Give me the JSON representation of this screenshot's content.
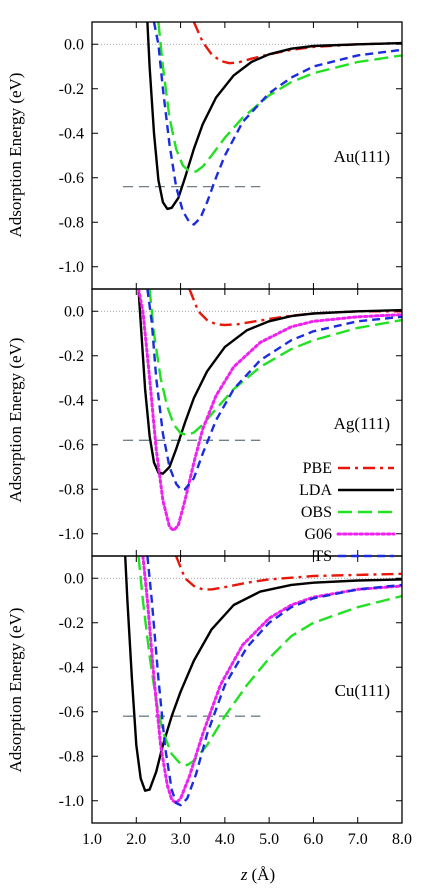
{
  "figure": {
    "ylabel": "Adsorption Energy (eV)",
    "xlabel_italic": "z",
    "xlabel_unit": "(Å)"
  },
  "colors": {
    "PBE": "#e8160b",
    "LDA": "#000000",
    "OBS": "#22e022",
    "G06": "#ee22ee",
    "TS": "#1a2cdd",
    "reference_line": "#6e7f88",
    "zero_line": "#888888"
  },
  "legend": {
    "position": "inside-middle-panel-right",
    "entries": [
      "PBE",
      "LDA",
      "OBS",
      "G06",
      "TS"
    ]
  },
  "chart_data": [
    {
      "type": "line",
      "panel_label": "Au(111)",
      "xlim": [
        1.0,
        8.0
      ],
      "ylim": [
        -1.1,
        0.1
      ],
      "xticks": [
        1.0,
        2.0,
        3.0,
        4.0,
        5.0,
        6.0,
        7.0,
        8.0
      ],
      "yticks": [
        0.0,
        -0.2,
        -0.4,
        -0.6,
        -0.8,
        -1.0
      ],
      "ytick_labels": [
        "0.0",
        "-0.2",
        "-0.4",
        "-0.6",
        "-0.8",
        "-1.0"
      ],
      "zero_line": true,
      "reference_line": {
        "y": -0.64,
        "x": [
          1.7,
          4.8
        ]
      },
      "series": [
        {
          "name": "PBE",
          "dash": "dashdot",
          "points": [
            [
              3.3,
              0.1
            ],
            [
              3.5,
              0.01
            ],
            [
              3.7,
              -0.045
            ],
            [
              3.9,
              -0.075
            ],
            [
              4.1,
              -0.085
            ],
            [
              4.3,
              -0.082
            ],
            [
              4.6,
              -0.065
            ],
            [
              5.0,
              -0.045
            ],
            [
              5.5,
              -0.025
            ],
            [
              6.0,
              -0.012
            ],
            [
              7.0,
              0.0
            ],
            [
              8.0,
              0.005
            ]
          ]
        },
        {
          "name": "LDA",
          "dash": "solid",
          "points": [
            [
              2.25,
              0.1
            ],
            [
              2.3,
              -0.1
            ],
            [
              2.4,
              -0.4
            ],
            [
              2.5,
              -0.61
            ],
            [
              2.6,
              -0.71
            ],
            [
              2.7,
              -0.74
            ],
            [
              2.8,
              -0.735
            ],
            [
              2.95,
              -0.69
            ],
            [
              3.1,
              -0.6
            ],
            [
              3.3,
              -0.47
            ],
            [
              3.5,
              -0.36
            ],
            [
              3.8,
              -0.24
            ],
            [
              4.2,
              -0.14
            ],
            [
              4.6,
              -0.08
            ],
            [
              5.0,
              -0.045
            ],
            [
              5.5,
              -0.02
            ],
            [
              6.0,
              -0.008
            ],
            [
              7.0,
              0.0
            ],
            [
              8.0,
              0.005
            ]
          ]
        },
        {
          "name": "OBS",
          "dash": "longdash",
          "points": [
            [
              2.5,
              0.1
            ],
            [
              2.6,
              -0.1
            ],
            [
              2.75,
              -0.33
            ],
            [
              2.9,
              -0.47
            ],
            [
              3.05,
              -0.545
            ],
            [
              3.2,
              -0.572
            ],
            [
              3.35,
              -0.572
            ],
            [
              3.5,
              -0.55
            ],
            [
              3.7,
              -0.5
            ],
            [
              4.0,
              -0.42
            ],
            [
              4.4,
              -0.33
            ],
            [
              5.0,
              -0.23
            ],
            [
              5.5,
              -0.17
            ],
            [
              6.0,
              -0.13
            ],
            [
              7.0,
              -0.08
            ],
            [
              8.0,
              -0.05
            ]
          ]
        },
        {
          "name": "TS",
          "dash": "shortdash",
          "points": [
            [
              2.4,
              0.1
            ],
            [
              2.5,
              0.0
            ],
            [
              2.6,
              -0.2
            ],
            [
              2.75,
              -0.45
            ],
            [
              2.9,
              -0.64
            ],
            [
              3.05,
              -0.75
            ],
            [
              3.2,
              -0.8
            ],
            [
              3.3,
              -0.81
            ],
            [
              3.45,
              -0.78
            ],
            [
              3.6,
              -0.71
            ],
            [
              3.8,
              -0.6
            ],
            [
              4.0,
              -0.5
            ],
            [
              4.4,
              -0.35
            ],
            [
              5.0,
              -0.22
            ],
            [
              5.5,
              -0.15
            ],
            [
              6.0,
              -0.1
            ],
            [
              7.0,
              -0.05
            ],
            [
              8.0,
              -0.025
            ]
          ]
        }
      ]
    },
    {
      "type": "line",
      "panel_label": "Ag(111)",
      "xlim": [
        1.0,
        8.0
      ],
      "ylim": [
        -1.1,
        0.1
      ],
      "xticks": [
        1.0,
        2.0,
        3.0,
        4.0,
        5.0,
        6.0,
        7.0,
        8.0
      ],
      "yticks": [
        0.0,
        -0.2,
        -0.4,
        -0.6,
        -0.8,
        -1.0
      ],
      "ytick_labels": [
        "0.0",
        "-0.2",
        "-0.4",
        "-0.6",
        "-0.8",
        "-1.0"
      ],
      "zero_line": true,
      "reference_line": {
        "y": -0.58,
        "x": [
          1.7,
          4.8
        ]
      },
      "series": [
        {
          "name": "PBE",
          "dash": "dashdot",
          "points": [
            [
              3.2,
              0.1
            ],
            [
              3.4,
              0.0
            ],
            [
              3.6,
              -0.04
            ],
            [
              3.8,
              -0.058
            ],
            [
              4.0,
              -0.062
            ],
            [
              4.3,
              -0.058
            ],
            [
              4.6,
              -0.048
            ],
            [
              5.0,
              -0.035
            ],
            [
              5.5,
              -0.02
            ],
            [
              6.0,
              -0.01
            ],
            [
              7.0,
              0.0
            ],
            [
              8.0,
              0.0
            ]
          ]
        },
        {
          "name": "LDA",
          "dash": "solid",
          "points": [
            [
              2.05,
              0.1
            ],
            [
              2.1,
              -0.05
            ],
            [
              2.2,
              -0.35
            ],
            [
              2.3,
              -0.56
            ],
            [
              2.4,
              -0.68
            ],
            [
              2.5,
              -0.725
            ],
            [
              2.6,
              -0.73
            ],
            [
              2.75,
              -0.7
            ],
            [
              2.9,
              -0.62
            ],
            [
              3.1,
              -0.5
            ],
            [
              3.3,
              -0.39
            ],
            [
              3.6,
              -0.27
            ],
            [
              4.0,
              -0.16
            ],
            [
              4.5,
              -0.085
            ],
            [
              5.0,
              -0.045
            ],
            [
              5.5,
              -0.022
            ],
            [
              6.0,
              -0.01
            ],
            [
              7.0,
              0.0
            ],
            [
              8.0,
              0.005
            ]
          ]
        },
        {
          "name": "OBS",
          "dash": "longdash",
          "points": [
            [
              2.3,
              0.1
            ],
            [
              2.4,
              -0.1
            ],
            [
              2.55,
              -0.3
            ],
            [
              2.7,
              -0.43
            ],
            [
              2.85,
              -0.51
            ],
            [
              3.0,
              -0.548
            ],
            [
              3.15,
              -0.556
            ],
            [
              3.3,
              -0.545
            ],
            [
              3.5,
              -0.51
            ],
            [
              3.8,
              -0.44
            ],
            [
              4.2,
              -0.35
            ],
            [
              4.8,
              -0.25
            ],
            [
              5.5,
              -0.17
            ],
            [
              6.0,
              -0.13
            ],
            [
              7.0,
              -0.075
            ],
            [
              8.0,
              -0.04
            ]
          ]
        },
        {
          "name": "G06",
          "dash": "dotted",
          "points": [
            [
              2.05,
              0.1
            ],
            [
              2.15,
              0.0
            ],
            [
              2.3,
              -0.3
            ],
            [
              2.45,
              -0.62
            ],
            [
              2.6,
              -0.85
            ],
            [
              2.75,
              -0.97
            ],
            [
              2.85,
              -0.985
            ],
            [
              2.95,
              -0.96
            ],
            [
              3.1,
              -0.85
            ],
            [
              3.3,
              -0.68
            ],
            [
              3.5,
              -0.53
            ],
            [
              3.8,
              -0.38
            ],
            [
              4.2,
              -0.25
            ],
            [
              4.8,
              -0.14
            ],
            [
              5.5,
              -0.07
            ],
            [
              6.0,
              -0.045
            ],
            [
              7.0,
              -0.025
            ],
            [
              8.0,
              -0.015
            ]
          ]
        },
        {
          "name": "TS",
          "dash": "shortdash",
          "points": [
            [
              2.25,
              0.1
            ],
            [
              2.35,
              -0.05
            ],
            [
              2.45,
              -0.3
            ],
            [
              2.6,
              -0.55
            ],
            [
              2.75,
              -0.7
            ],
            [
              2.9,
              -0.775
            ],
            [
              3.0,
              -0.8
            ],
            [
              3.1,
              -0.8
            ],
            [
              3.3,
              -0.75
            ],
            [
              3.5,
              -0.64
            ],
            [
              3.8,
              -0.49
            ],
            [
              4.2,
              -0.35
            ],
            [
              4.8,
              -0.22
            ],
            [
              5.5,
              -0.13
            ],
            [
              6.0,
              -0.09
            ],
            [
              7.0,
              -0.045
            ],
            [
              8.0,
              -0.025
            ]
          ]
        }
      ]
    },
    {
      "type": "line",
      "panel_label": "Cu(111)",
      "xlim": [
        1.0,
        8.0
      ],
      "ylim": [
        -1.1,
        0.1
      ],
      "xticks": [
        1.0,
        2.0,
        3.0,
        4.0,
        5.0,
        6.0,
        7.0,
        8.0
      ],
      "xtick_labels": [
        "1.0",
        "2.0",
        "3.0",
        "4.0",
        "5.0",
        "6.0",
        "7.0",
        "8.0"
      ],
      "yticks": [
        0.0,
        -0.2,
        -0.4,
        -0.6,
        -0.8,
        -1.0
      ],
      "ytick_labels": [
        "0.0",
        "-0.2",
        "-0.4",
        "-0.6",
        "-0.8",
        "-1.0"
      ],
      "zero_line": true,
      "reference_line": {
        "y": -0.62,
        "x": [
          1.7,
          4.8
        ]
      },
      "series": [
        {
          "name": "PBE",
          "dash": "dashdot",
          "points": [
            [
              2.9,
              0.1
            ],
            [
              3.1,
              0.0
            ],
            [
              3.3,
              -0.035
            ],
            [
              3.5,
              -0.05
            ],
            [
              3.7,
              -0.05
            ],
            [
              4.0,
              -0.04
            ],
            [
              4.5,
              -0.02
            ],
            [
              5.0,
              -0.005
            ],
            [
              6.0,
              0.01
            ],
            [
              7.0,
              0.015
            ],
            [
              8.0,
              0.02
            ]
          ]
        },
        {
          "name": "LDA",
          "dash": "solid",
          "points": [
            [
              1.75,
              0.1
            ],
            [
              1.8,
              -0.1
            ],
            [
              1.9,
              -0.45
            ],
            [
              2.0,
              -0.75
            ],
            [
              2.1,
              -0.9
            ],
            [
              2.2,
              -0.955
            ],
            [
              2.3,
              -0.95
            ],
            [
              2.45,
              -0.87
            ],
            [
              2.6,
              -0.75
            ],
            [
              2.8,
              -0.62
            ],
            [
              3.0,
              -0.51
            ],
            [
              3.3,
              -0.37
            ],
            [
              3.7,
              -0.23
            ],
            [
              4.2,
              -0.12
            ],
            [
              4.8,
              -0.06
            ],
            [
              5.5,
              -0.03
            ],
            [
              6.0,
              -0.02
            ],
            [
              7.0,
              -0.01
            ],
            [
              8.0,
              -0.005
            ]
          ]
        },
        {
          "name": "OBS",
          "dash": "longdash",
          "points": [
            [
              2.05,
              0.1
            ],
            [
              2.15,
              -0.1
            ],
            [
              2.3,
              -0.35
            ],
            [
              2.45,
              -0.55
            ],
            [
              2.6,
              -0.69
            ],
            [
              2.8,
              -0.79
            ],
            [
              3.0,
              -0.835
            ],
            [
              3.15,
              -0.84
            ],
            [
              3.3,
              -0.82
            ],
            [
              3.6,
              -0.75
            ],
            [
              4.0,
              -0.62
            ],
            [
              4.5,
              -0.48
            ],
            [
              5.0,
              -0.36
            ],
            [
              5.5,
              -0.26
            ],
            [
              6.0,
              -0.2
            ],
            [
              7.0,
              -0.13
            ],
            [
              8.0,
              -0.08
            ]
          ]
        },
        {
          "name": "G06",
          "dash": "dotted",
          "points": [
            [
              2.15,
              0.1
            ],
            [
              2.25,
              -0.1
            ],
            [
              2.4,
              -0.45
            ],
            [
              2.55,
              -0.75
            ],
            [
              2.7,
              -0.93
            ],
            [
              2.8,
              -0.995
            ],
            [
              2.9,
              -1.01
            ],
            [
              3.0,
              -0.99
            ],
            [
              3.2,
              -0.89
            ],
            [
              3.5,
              -0.7
            ],
            [
              3.9,
              -0.48
            ],
            [
              4.4,
              -0.3
            ],
            [
              5.0,
              -0.18
            ],
            [
              5.5,
              -0.12
            ],
            [
              6.0,
              -0.085
            ],
            [
              7.0,
              -0.05
            ],
            [
              8.0,
              -0.035
            ]
          ]
        },
        {
          "name": "TS",
          "dash": "shortdash",
          "points": [
            [
              2.25,
              0.1
            ],
            [
              2.35,
              -0.1
            ],
            [
              2.5,
              -0.45
            ],
            [
              2.65,
              -0.76
            ],
            [
              2.8,
              -0.95
            ],
            [
              2.9,
              -1.01
            ],
            [
              3.0,
              -1.02
            ],
            [
              3.15,
              -0.99
            ],
            [
              3.35,
              -0.88
            ],
            [
              3.6,
              -0.7
            ],
            [
              4.0,
              -0.48
            ],
            [
              4.5,
              -0.31
            ],
            [
              5.0,
              -0.2
            ],
            [
              5.5,
              -0.13
            ],
            [
              6.0,
              -0.09
            ],
            [
              7.0,
              -0.05
            ],
            [
              8.0,
              -0.03
            ]
          ]
        }
      ]
    }
  ]
}
